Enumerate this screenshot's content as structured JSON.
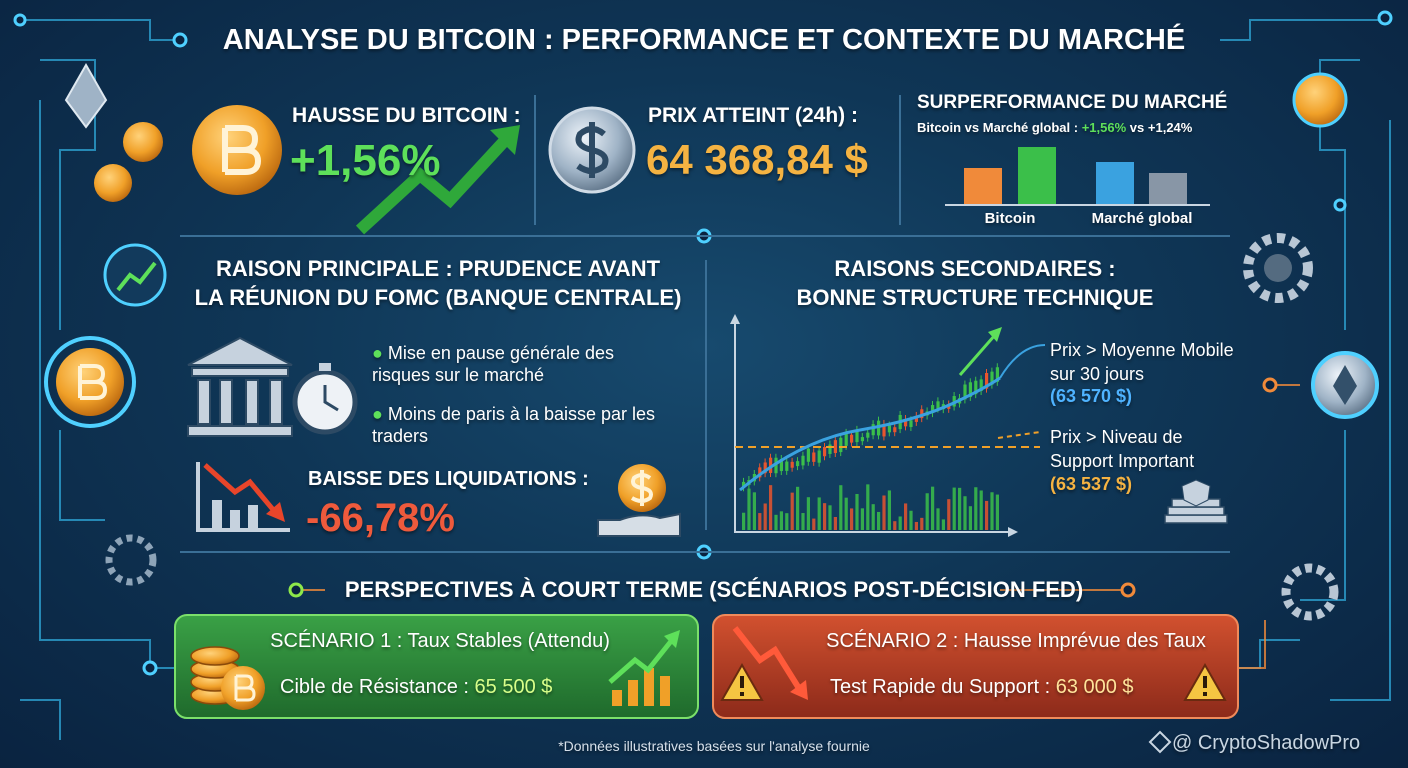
{
  "header": {
    "title": "ANALYSE DU BITCOIN : PERFORMANCE ET CONTEXTE DU MARCHÉ"
  },
  "rise": {
    "label": "HAUSSE DU BITCOIN :",
    "value": "+1,56%"
  },
  "price": {
    "label": "PRIX ATTEINT (24h) :",
    "value": "64 368,84 $"
  },
  "outperformance": {
    "title": "SURPERFORMANCE DU MARCHÉ",
    "subtitle": "Bitcoin vs Marché global :",
    "bitcoin": "+1,56%",
    "vs": "vs",
    "market": "+1,24%",
    "labels": [
      "Bitcoin",
      "Marché global"
    ]
  },
  "main_reason": {
    "title_lines": [
      "RAISON PRINCIPALE : PRUDENCE AVANT",
      "LA RÉUNION DU FOMC (BANQUE CENTRALE)"
    ],
    "bullets": [
      "Mise en pause générale des risques sur le marché",
      "Moins de paris à la baisse par les traders"
    ],
    "liquidations_label": "BAISSE DES LIQUIDATIONS :",
    "liquidations_value": "-66,78%"
  },
  "secondary": {
    "title_lines": [
      "RAISONS SECONDAIRES :",
      "BONNE STRUCTURE TECHNIQUE"
    ],
    "notes": [
      {
        "text": "Prix > Moyenne Mobile sur 30 jours",
        "value": "(63 570 $)"
      },
      {
        "text": "Prix > Niveau de Support Important",
        "value": "(63 537 $)"
      }
    ]
  },
  "outlook": {
    "title": "PERSPECTIVES À COURT TERME (SCÉNARIOS POST-DÉCISION FED)",
    "scenarios": [
      {
        "title": "SCÉNARIO 1 : Taux Stables (Attendu)",
        "label": "Cible de Résistance :",
        "value": "65 500 $"
      },
      {
        "title": "SCÉNARIO 2 : Hausse Imprévue des Taux",
        "label": "Test Rapide du Support :",
        "value": "63 000 $"
      }
    ]
  },
  "footnote": "*Données illustratives basées sur l'analyse fournie",
  "watermark": "@ CryptoShadowPro"
}
